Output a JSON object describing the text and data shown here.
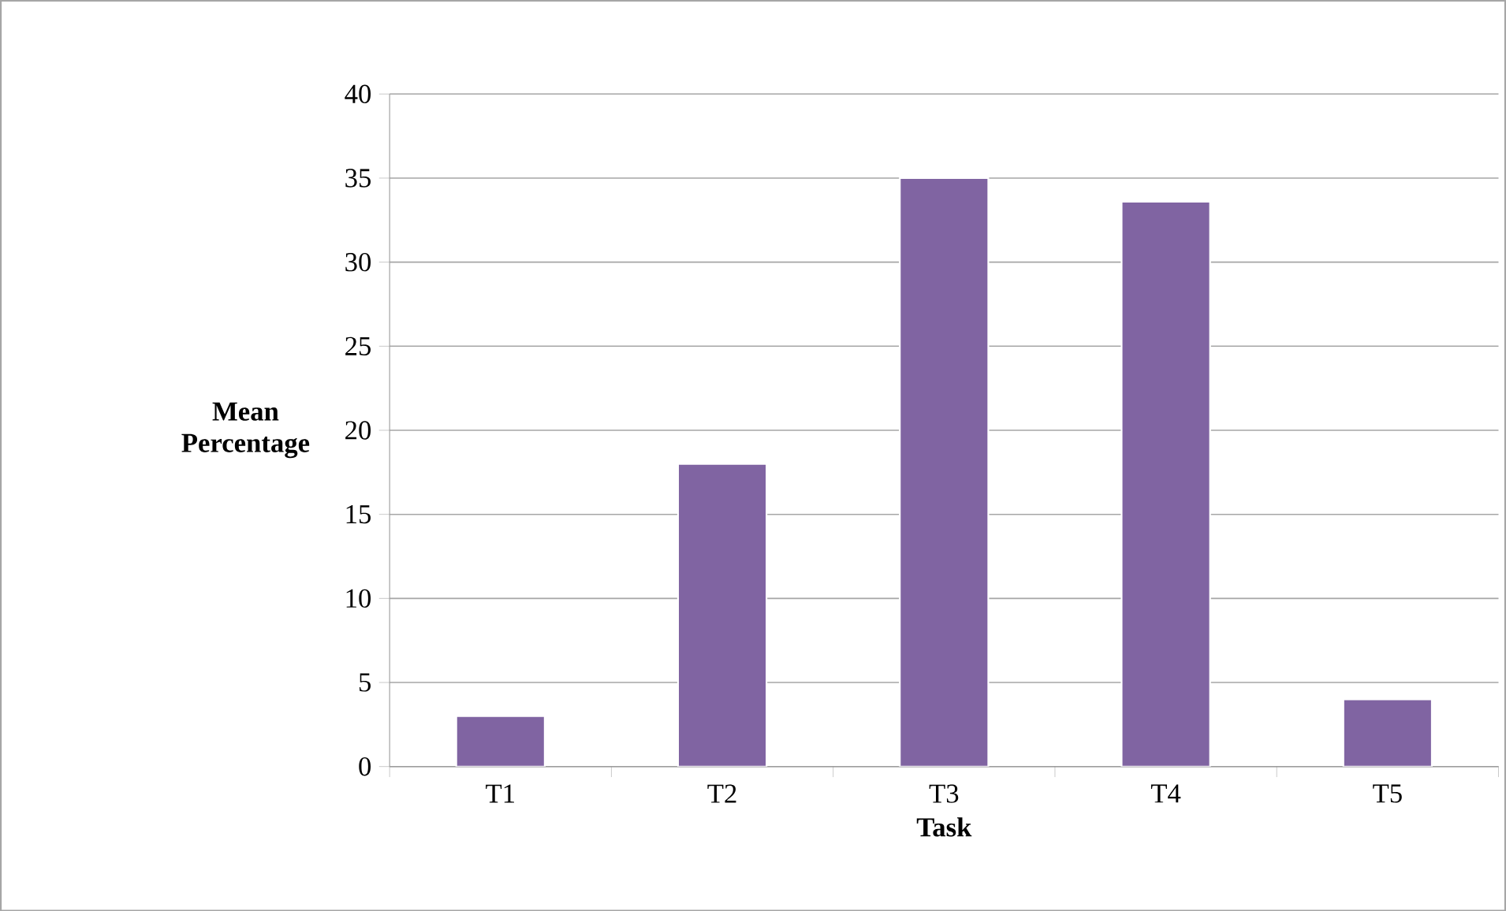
{
  "chart_data": {
    "type": "bar",
    "xlabel": "Task",
    "ylabel": "Mean Percentage",
    "categories": [
      "T1",
      "T2",
      "T3",
      "T4",
      "T5"
    ],
    "values": [
      3,
      18,
      35,
      33.6,
      4
    ],
    "color": "#8064a2",
    "ylim": [
      0,
      40
    ],
    "yticks": [
      0,
      5,
      10,
      15,
      20,
      25,
      30,
      35,
      40
    ],
    "grid": "y"
  }
}
